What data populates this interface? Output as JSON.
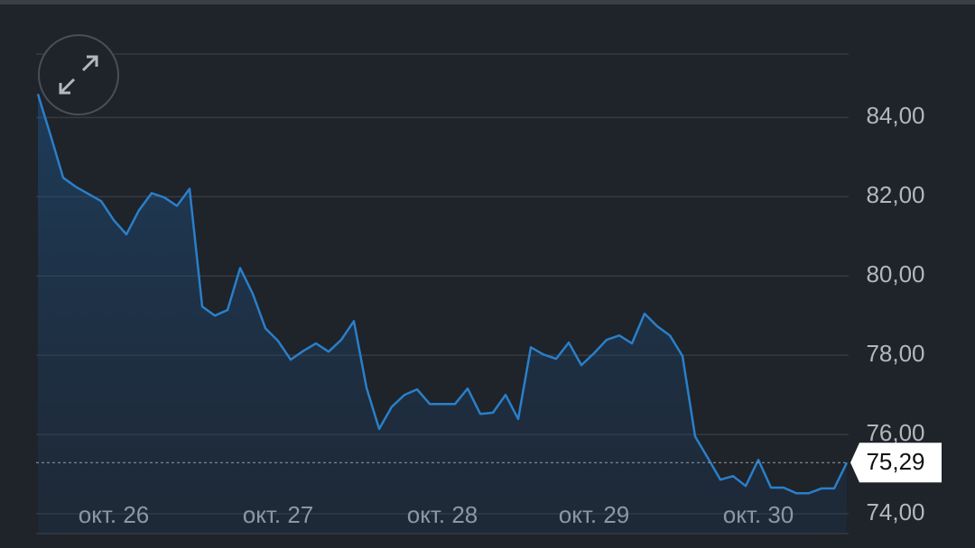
{
  "chart_data": {
    "type": "line",
    "color": "#2a7fc9",
    "grid": true,
    "xlim": [
      0,
      64
    ],
    "ylim": [
      73.5,
      86.1
    ],
    "xticks": [
      {
        "value": 6,
        "label": "окт. 26"
      },
      {
        "value": 19,
        "label": "окт. 27"
      },
      {
        "value": 32,
        "label": "окт. 28"
      },
      {
        "value": 44,
        "label": "окт. 29"
      },
      {
        "value": 57,
        "label": "окт. 30"
      }
    ],
    "yticks": [
      {
        "value": 84,
        "label": "84,00"
      },
      {
        "value": 82,
        "label": "82,00"
      },
      {
        "value": 80,
        "label": "80,00"
      },
      {
        "value": 78,
        "label": "78,00"
      },
      {
        "value": 76,
        "label": "76,00"
      },
      {
        "value": 74,
        "label": "74,00"
      }
    ],
    "values": [
      84.59,
      83.55,
      82.48,
      82.25,
      82.07,
      81.89,
      81.41,
      81.05,
      81.66,
      82.09,
      81.98,
      81.77,
      82.2,
      79.23,
      79.0,
      79.14,
      80.2,
      79.55,
      78.68,
      78.36,
      77.89,
      78.11,
      78.3,
      78.09,
      78.39,
      78.86,
      77.18,
      76.14,
      76.7,
      77.0,
      77.14,
      76.77,
      76.77,
      76.77,
      77.16,
      76.52,
      76.55,
      77.0,
      76.39,
      78.2,
      78.02,
      77.91,
      78.32,
      77.75,
      78.05,
      78.39,
      78.5,
      78.3,
      79.05,
      78.73,
      78.5,
      77.98,
      75.95,
      75.41,
      74.86,
      74.95,
      74.7,
      75.36,
      74.66,
      74.66,
      74.52,
      74.52,
      74.64,
      74.64,
      75.29
    ],
    "value_labels": [
      null,
      null,
      null,
      null,
      null,
      null,
      null,
      null,
      null,
      null,
      null,
      null,
      null,
      null,
      null,
      null,
      null,
      null,
      null,
      null,
      null,
      null,
      null,
      null,
      null,
      null,
      null,
      null,
      null,
      null,
      null,
      null,
      null,
      null,
      null,
      null,
      null,
      null,
      null,
      null,
      null,
      null,
      null,
      null,
      null,
      null,
      null,
      null,
      null,
      null,
      null,
      null,
      null,
      null,
      null,
      null,
      null,
      null,
      null,
      null,
      null,
      null,
      null,
      null,
      "75,29"
    ]
  }
}
